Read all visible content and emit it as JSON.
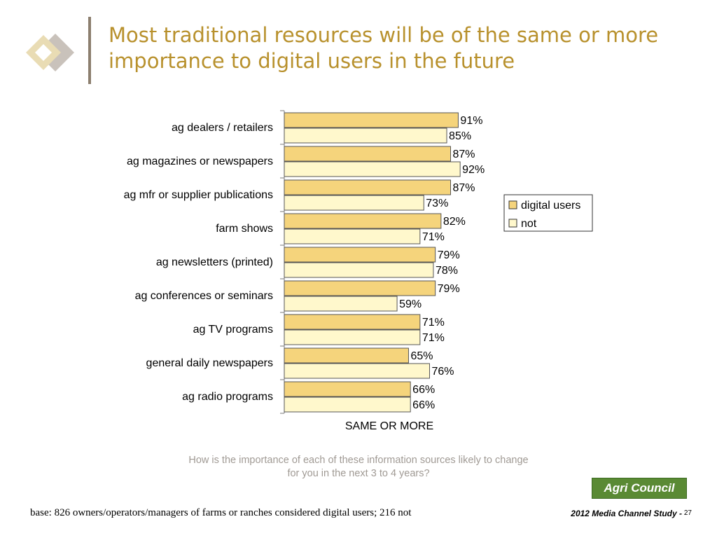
{
  "title": "Most traditional resources will be of the same or more importance to digital users in the future",
  "question": {
    "line1": "How is the importance of each of these information sources likely to change",
    "line2": "for you in the next 3 to 4 years?"
  },
  "footer": {
    "base": "base:  826 owners/operators/managers of farms or ranches considered digital users; 216 not",
    "study": "2012 Media Channel Study -",
    "page": "27",
    "brand": "Agri Council"
  },
  "colors": {
    "title": "#b8912d",
    "digital_users": "#f5d47c",
    "not": "#fff8cc",
    "bar_border": "#555555",
    "brand": "#5a8a34"
  },
  "chart_data": {
    "type": "bar",
    "orientation": "horizontal",
    "categories": [
      "ag dealers / retailers",
      "ag magazines or newspapers",
      "ag mfr or supplier publications",
      "farm shows",
      "ag newsletters (printed)",
      "ag conferences or seminars",
      "ag TV programs",
      "general daily newspapers",
      "ag radio programs"
    ],
    "series": [
      {
        "name": "digital users",
        "values": [
          91,
          87,
          87,
          82,
          79,
          79,
          71,
          65,
          66
        ],
        "labels": [
          "91%",
          "87%",
          "87%",
          "82%",
          "79%",
          "79%",
          "71%",
          "65%",
          "66%"
        ]
      },
      {
        "name": "not",
        "values": [
          85,
          92,
          73,
          71,
          78,
          59,
          71,
          76,
          66
        ],
        "labels": [
          "85%",
          "92%",
          "73%",
          "71%",
          "78%",
          "59%",
          "71%",
          "76%",
          "66%"
        ]
      }
    ],
    "xlabel": "SAME OR MORE",
    "ylabel": "",
    "xlim": [
      0,
      100
    ],
    "grid": false,
    "legend_position": "right"
  }
}
